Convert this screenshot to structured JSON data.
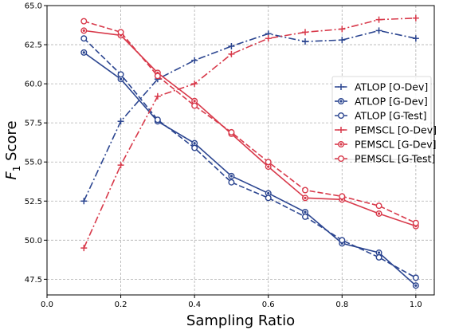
{
  "chart_data": {
    "type": "line",
    "xlabel": "Sampling Ratio",
    "ylabel_main": "F",
    "ylabel_sub": "1",
    "ylabel_rest": " Score",
    "xlim": [
      0.0,
      1.05
    ],
    "ylim": [
      46.5,
      65.0
    ],
    "xticks": [
      0.0,
      0.2,
      0.4,
      0.6,
      0.8,
      1.0
    ],
    "xtick_labels": [
      "0.0",
      "0.2",
      "0.4",
      "0.6",
      "0.8",
      "1.0"
    ],
    "yticks": [
      47.5,
      50.0,
      52.5,
      55.0,
      57.5,
      60.0,
      62.5,
      65.0
    ],
    "ytick_labels": [
      "47.5",
      "50.0",
      "52.5",
      "55.0",
      "57.5",
      "60.0",
      "62.5",
      "65.0"
    ],
    "grid": true,
    "legend_position": "center-right",
    "x": [
      0.1,
      0.2,
      0.3,
      0.4,
      0.5,
      0.6,
      0.7,
      0.8,
      0.9,
      1.0
    ],
    "series": [
      {
        "name": "ATLOP [O-Dev]",
        "color": "#2b4590",
        "linestyle": "dashdot",
        "marker": "plus",
        "values": [
          52.5,
          57.6,
          60.3,
          61.5,
          62.4,
          63.2,
          62.7,
          62.8,
          63.4,
          62.9
        ]
      },
      {
        "name": "ATLOP [G-Dev]",
        "color": "#2b4590",
        "linestyle": "solid",
        "marker": "filled-circle",
        "values": [
          62.0,
          60.3,
          57.6,
          56.2,
          54.1,
          53.0,
          51.8,
          49.8,
          49.2,
          47.1
        ]
      },
      {
        "name": "ATLOP [G-Test]",
        "color": "#2b4590",
        "linestyle": "dashed",
        "marker": "open-circle",
        "values": [
          62.9,
          60.6,
          57.7,
          55.9,
          53.7,
          52.7,
          51.5,
          50.0,
          48.9,
          47.6
        ]
      },
      {
        "name": "PEMSCL [O-Dev]",
        "color": "#d8394a",
        "linestyle": "dashdot",
        "marker": "plus",
        "values": [
          49.5,
          54.8,
          59.2,
          60.0,
          61.9,
          62.9,
          63.3,
          63.5,
          64.1,
          64.2
        ]
      },
      {
        "name": "PEMSCL [G-Dev]",
        "color": "#d8394a",
        "linestyle": "solid",
        "marker": "filled-circle",
        "values": [
          63.4,
          63.1,
          60.7,
          58.9,
          56.8,
          54.7,
          52.7,
          52.6,
          51.7,
          50.9
        ]
      },
      {
        "name": "PEMSCL [G-Test]",
        "color": "#d8394a",
        "linestyle": "dashed",
        "marker": "open-circle",
        "values": [
          64.0,
          63.3,
          60.5,
          58.6,
          56.9,
          55.0,
          53.2,
          52.8,
          52.2,
          51.1
        ]
      }
    ]
  }
}
